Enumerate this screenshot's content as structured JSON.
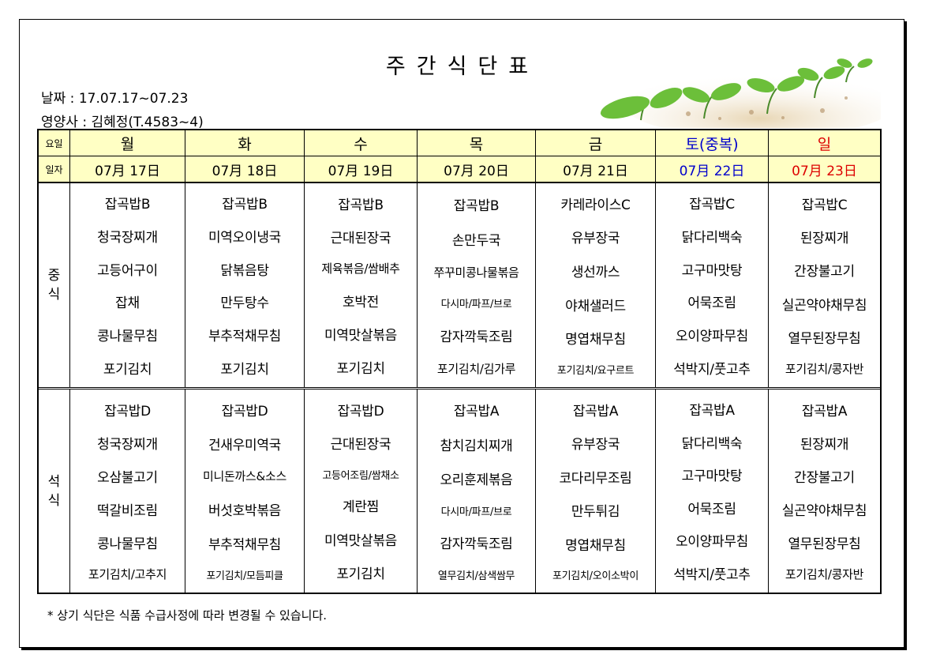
{
  "title": "주간식단표",
  "date_line": "날짜 : 17.07.17~07.23",
  "dietitian_line": "영양사 : 김혜정(T.4583~4)",
  "header": {
    "row1_label": "요일",
    "row2_label": "일자",
    "days": [
      "월",
      "화",
      "수",
      "목",
      "금",
      "토(중복)",
      "일"
    ],
    "dates": [
      "07月 17日",
      "07月 18日",
      "07月 19日",
      "07月 20日",
      "07月 21日",
      "07月 22日",
      "07月 23日"
    ]
  },
  "lunch": {
    "label": "중식",
    "menus": [
      [
        "잡곡밥B",
        "청국장찌개",
        "고등어구이",
        "잡채",
        "콩나물무침",
        "포기김치"
      ],
      [
        "잡곡밥B",
        "미역오이냉국",
        "닭볶음탕",
        "만두탕수",
        "부추적채무침",
        "포기김치"
      ],
      [
        "잡곡밥B",
        "근대된장국",
        "제육볶음/쌈배추",
        "호박전",
        "미역맛살볶음",
        "포기김치"
      ],
      [
        "잡곡밥B",
        "손만두국",
        "쭈꾸미콩나물볶음",
        "다시마/파프/브로",
        "감자깍둑조림",
        "포기김치/김가루"
      ],
      [
        "카레라이스C",
        "유부장국",
        "생선까스",
        "야채샐러드",
        "명엽채무침",
        "포기김치/요구르트"
      ],
      [
        "잡곡밥C",
        "닭다리백숙",
        "고구마맛탕",
        "어묵조림",
        "오이양파무침",
        "석박지/풋고추"
      ],
      [
        "잡곡밥C",
        "된장찌개",
        "간장불고기",
        "실곤약야채무침",
        "열무된장무침",
        "포기김치/콩자반"
      ]
    ]
  },
  "dinner": {
    "label": "석식",
    "menus": [
      [
        "잡곡밥D",
        "청국장찌개",
        "오삼불고기",
        "떡갈비조림",
        "콩나물무침",
        "포기김치/고추지"
      ],
      [
        "잡곡밥D",
        "건새우미역국",
        "미니돈까스&소스",
        "버섯호박볶음",
        "부추적채무침",
        "포기김치/모듬피클"
      ],
      [
        "잡곡밥D",
        "근대된장국",
        "고등어조림/쌈채소",
        "계란찜",
        "미역맛살볶음",
        "포기김치"
      ],
      [
        "잡곡밥A",
        "참치김치찌개",
        "오리훈제볶음",
        "다시마/파프/브로",
        "감자깍둑조림",
        "열무김치/삼색쌈무"
      ],
      [
        "잡곡밥A",
        "유부장국",
        "코다리무조림",
        "만두튀김",
        "명엽채무침",
        "포기김치/오이소박이"
      ],
      [
        "잡곡밥A",
        "닭다리백숙",
        "고구마맛탕",
        "어묵조림",
        "오이양파무침",
        "석박지/풋고추"
      ],
      [
        "잡곡밥A",
        "된장찌개",
        "간장불고기",
        "실곤약야채무침",
        "열무된장무침",
        "포기김치/콩자반"
      ]
    ]
  },
  "note": "* 상기 식단은 식품 수급사정에 따라 변경될 수 있습니다.",
  "colors": {
    "header_bg": "#ffffc4",
    "saturday": "#0000cc",
    "sunday": "#dd0000"
  },
  "decoration": "sprouts-image"
}
